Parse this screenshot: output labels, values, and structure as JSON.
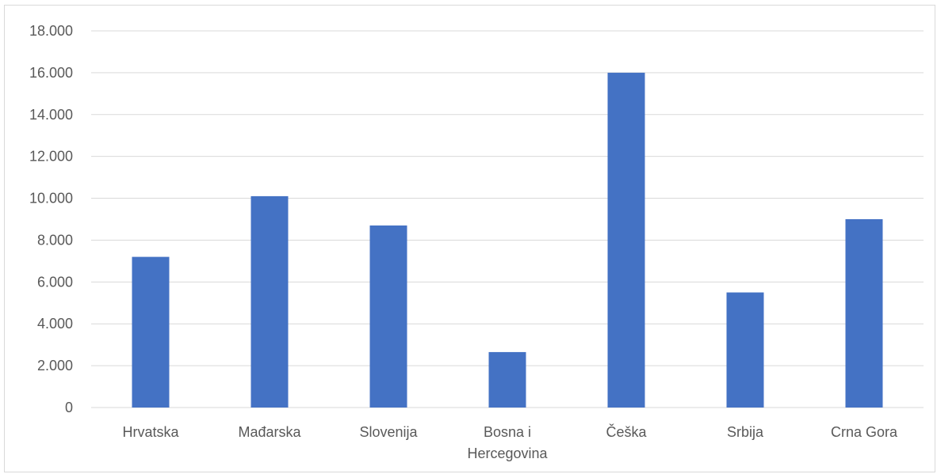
{
  "chart_data": {
    "type": "bar",
    "title": "",
    "xlabel": "",
    "ylabel": "",
    "categories": [
      "Hrvatska",
      "Mađarska",
      "Slovenija",
      "Bosna i Hercegovina",
      "Češka",
      "Srbija",
      "Crna Gora"
    ],
    "category_lines": [
      [
        "Hrvatska"
      ],
      [
        "Mađarska"
      ],
      [
        "Slovenija"
      ],
      [
        "Bosna i",
        "Hercegovina"
      ],
      [
        "Češka"
      ],
      [
        "Srbija"
      ],
      [
        "Crna Gora"
      ]
    ],
    "values": [
      7200,
      10100,
      8700,
      2650,
      16000,
      5500,
      9000
    ],
    "ylim": [
      0,
      18000
    ],
    "yticks": [
      0,
      2000,
      4000,
      6000,
      8000,
      10000,
      12000,
      14000,
      16000,
      18000
    ],
    "ytick_labels": [
      "0",
      "2.000",
      "4.000",
      "6.000",
      "8.000",
      "10.000",
      "12.000",
      "14.000",
      "16.000",
      "18.000"
    ],
    "grid": true,
    "legend": "none",
    "bar_color": "#4472c4",
    "grid_color": "#d9d9d9",
    "text_color": "#595959"
  }
}
